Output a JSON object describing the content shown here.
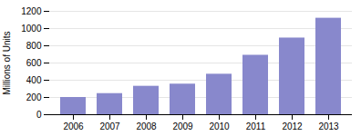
{
  "chart_data": {
    "type": "bar",
    "categories": [
      "2006",
      "2007",
      "2008",
      "2009",
      "2010",
      "2011",
      "2012",
      "2013"
    ],
    "values": [
      200,
      245,
      330,
      355,
      470,
      690,
      890,
      1120
    ],
    "color": "#8888cc",
    "ylabel": "Millions of Units",
    "ylim": [
      0,
      1200
    ],
    "yticks": [
      0,
      200,
      400,
      600,
      800,
      1000,
      1200
    ],
    "grid": true
  }
}
